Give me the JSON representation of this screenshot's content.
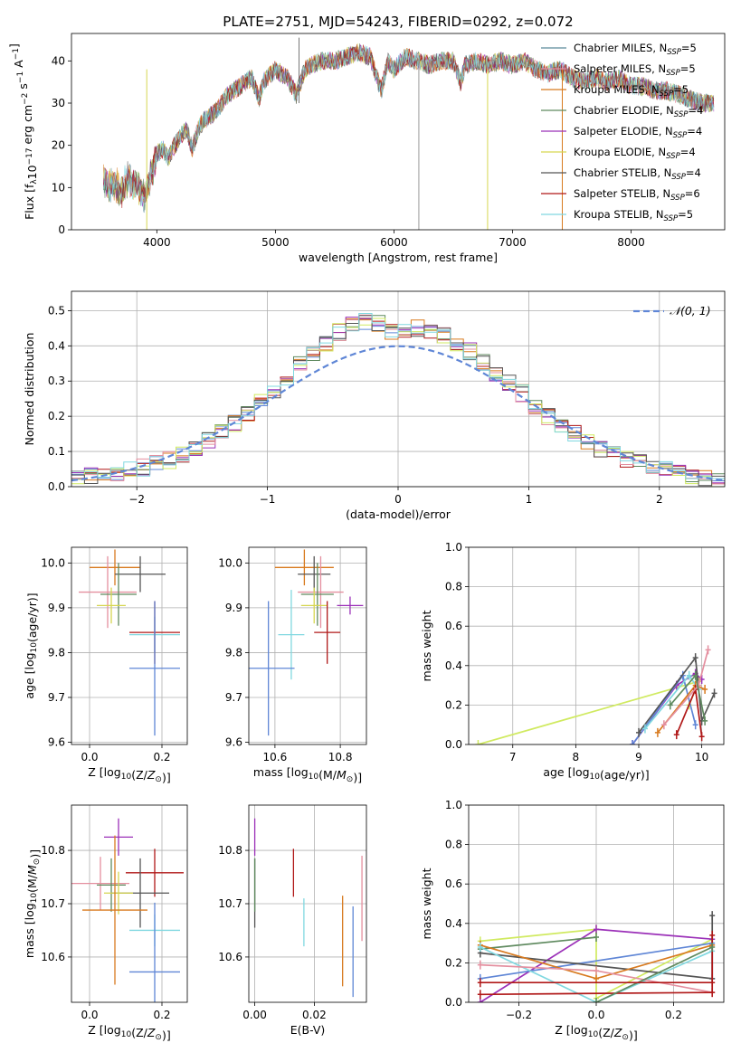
{
  "figure": {
    "title": "PLATE=2751, MJD=54243, FIBERID=0292, z=0.072",
    "colors": {
      "chabrier_miles": "#5a8a9a",
      "salpeter_miles": "#e48f9f",
      "kroupa_miles": "#d87a1f",
      "chabrier_elodie": "#5f8a5f",
      "salpeter_elodie": "#9b30b8",
      "kroupa_elodie": "#d6d650",
      "chabrier_stelib": "#555555",
      "salpeter_stelib": "#b01818",
      "kroupa_stelib": "#80d8e0",
      "blue": "#5f86d6",
      "lime": "#d0ea60"
    }
  },
  "chart_data": [
    {
      "id": "spectrum",
      "type": "line",
      "xlabel": "wavelength [Angstrom, rest frame]",
      "ylabel": "Flux [f_λ10^-17 erg cm^-2 s^-1 A^-1]",
      "xlim": [
        3280,
        8790
      ],
      "ylim": [
        0,
        46.5
      ],
      "xticks": [
        4000,
        5000,
        6000,
        7000,
        8000
      ],
      "yticks": [
        0,
        10,
        20,
        30,
        40
      ],
      "grid": false,
      "legend_position": "top-right",
      "legend": [
        {
          "name": "Chabrier MILES, N",
          "sub": "SSP",
          "suffix": "=5",
          "color": "#5a8a9a"
        },
        {
          "name": "Salpeter MILES, N",
          "sub": "SSP",
          "suffix": "=5",
          "color": "#e48f9f"
        },
        {
          "name": "Kroupa MILES, N",
          "sub": "SSP",
          "suffix": "=5",
          "color": "#d87a1f"
        },
        {
          "name": "Chabrier ELODIE, N",
          "sub": "SSP",
          "suffix": "=4",
          "color": "#5f8a5f"
        },
        {
          "name": "Salpeter ELODIE, N",
          "sub": "SSP",
          "suffix": "=4",
          "color": "#9b30b8"
        },
        {
          "name": "Kroupa ELODIE, N",
          "sub": "SSP",
          "suffix": "=4",
          "color": "#d6d650"
        },
        {
          "name": "Chabrier STELIB, N",
          "sub": "SSP",
          "suffix": "=4",
          "color": "#555555"
        },
        {
          "name": "Salpeter STELIB, N",
          "sub": "SSP",
          "suffix": "=6",
          "color": "#b01818"
        },
        {
          "name": "Kroupa STELIB, N",
          "sub": "SSP",
          "suffix": "=5",
          "color": "#80d8e0"
        }
      ],
      "x": [
        3550,
        3600,
        3650,
        3700,
        3750,
        3800,
        3850,
        3900,
        3950,
        4000,
        4050,
        4100,
        4150,
        4200,
        4250,
        4300,
        4350,
        4400,
        4450,
        4500,
        4600,
        4700,
        4800,
        4862,
        4900,
        5000,
        5100,
        5176,
        5250,
        5300,
        5400,
        5500,
        5600,
        5700,
        5800,
        5893,
        5950,
        6000,
        6100,
        6200,
        6300,
        6400,
        6500,
        6563,
        6600,
        6700,
        6800,
        6900,
        7000,
        7100,
        7200,
        7300,
        7400,
        7500,
        7600,
        7700,
        7800,
        7900,
        8000,
        8100,
        8200,
        8300,
        8400,
        8500,
        8600,
        8700
      ],
      "y": [
        12,
        10,
        11,
        9,
        12,
        11,
        10,
        8,
        13,
        18,
        19,
        17,
        20,
        22,
        24,
        19,
        24,
        26,
        27,
        28,
        32,
        34,
        36,
        31,
        35,
        38,
        36,
        32,
        38,
        39,
        40,
        40,
        41,
        42,
        41,
        33,
        40,
        38,
        41,
        40,
        39,
        40,
        40,
        35,
        39,
        40,
        39,
        40,
        39,
        40,
        38,
        37,
        38,
        36,
        35,
        36,
        35,
        36,
        34,
        34,
        33,
        33,
        32,
        31,
        30,
        30
      ]
    },
    {
      "id": "residuals",
      "type": "line",
      "xlabel": "(data-model)/error",
      "ylabel": "Normed distribution",
      "xlim": [
        -2.5,
        2.5
      ],
      "ylim": [
        0,
        0.555
      ],
      "xticks": [
        -2,
        -1,
        0,
        1,
        2
      ],
      "yticks": [
        0.0,
        0.1,
        0.2,
        0.3,
        0.4,
        0.5
      ],
      "grid": true,
      "legend_position": "top-right",
      "legend": [
        {
          "name": "𝒩(0, 1)",
          "color": "#5f86d6",
          "dashed": true
        }
      ],
      "bin_width": 0.1,
      "x": [
        -2.45,
        -2.35,
        -2.25,
        -2.15,
        -2.05,
        -1.95,
        -1.85,
        -1.75,
        -1.65,
        -1.55,
        -1.45,
        -1.35,
        -1.25,
        -1.15,
        -1.05,
        -0.95,
        -0.85,
        -0.75,
        -0.65,
        -0.55,
        -0.45,
        -0.35,
        -0.25,
        -0.15,
        -0.05,
        0.05,
        0.15,
        0.25,
        0.35,
        0.45,
        0.55,
        0.65,
        0.75,
        0.85,
        0.95,
        1.05,
        1.15,
        1.25,
        1.35,
        1.45,
        1.55,
        1.65,
        1.75,
        1.85,
        1.95,
        2.05,
        2.15,
        2.25,
        2.35,
        2.45
      ],
      "values": [
        0.028,
        0.03,
        0.034,
        0.04,
        0.046,
        0.054,
        0.064,
        0.076,
        0.092,
        0.11,
        0.13,
        0.155,
        0.18,
        0.21,
        0.24,
        0.275,
        0.31,
        0.345,
        0.38,
        0.41,
        0.44,
        0.46,
        0.47,
        0.465,
        0.44,
        0.44,
        0.45,
        0.445,
        0.43,
        0.41,
        0.385,
        0.355,
        0.325,
        0.295,
        0.265,
        0.23,
        0.2,
        0.175,
        0.15,
        0.128,
        0.108,
        0.092,
        0.078,
        0.066,
        0.056,
        0.047,
        0.038,
        0.03,
        0.024,
        0.018
      ],
      "normal_curve": true
    },
    {
      "id": "age_vs_z",
      "type": "scatter",
      "xlabel": "Z [log10(Z/Z⊙)]",
      "ylabel": "age  [log10(age/yr)]",
      "xlim": [
        -0.05,
        0.27
      ],
      "ylim": [
        9.595,
        10.035
      ],
      "xticks": [
        0.0,
        0.2
      ],
      "yticks": [
        9.6,
        9.7,
        9.8,
        9.9,
        10.0
      ],
      "grid": true,
      "points": [
        {
          "x": 0.07,
          "y": 9.99,
          "xerr": 0.07,
          "yerr": 0.04,
          "color": "#d87a1f"
        },
        {
          "x": 0.14,
          "y": 9.975,
          "xerr": 0.07,
          "yerr": 0.04,
          "color": "#555555"
        },
        {
          "x": 0.05,
          "y": 9.935,
          "xerr": 0.08,
          "yerr": 0.08,
          "color": "#e48f9f"
        },
        {
          "x": 0.08,
          "y": 9.93,
          "xerr": 0.05,
          "yerr": 0.07,
          "color": "#5f8a5f"
        },
        {
          "x": 0.06,
          "y": 9.905,
          "xerr": 0.04,
          "yerr": 0.04,
          "color": "#d6d650"
        },
        {
          "x": 0.18,
          "y": 9.84,
          "xerr": 0.07,
          "yerr": 0.04,
          "color": "#80d8e0"
        },
        {
          "x": 0.18,
          "y": 9.845,
          "xerr": 0.07,
          "yerr": 0.07,
          "color": "#b01818"
        },
        {
          "x": 0.18,
          "y": 9.765,
          "xerr": 0.07,
          "yerr": 0.15,
          "color": "#5f86d6"
        }
      ]
    },
    {
      "id": "age_vs_mass",
      "type": "scatter",
      "xlabel": "mass [log10(M/M⊙)]",
      "ylabel": "",
      "xlim": [
        10.52,
        10.88
      ],
      "ylim": [
        9.595,
        10.035
      ],
      "xticks": [
        10.6,
        10.8
      ],
      "yticks": [
        9.6,
        9.7,
        9.8,
        9.9,
        10.0
      ],
      "grid": true,
      "points": [
        {
          "x": 10.69,
          "y": 9.99,
          "xerr": 0.09,
          "yerr": 0.04,
          "color": "#d87a1f"
        },
        {
          "x": 10.72,
          "y": 9.975,
          "xerr": 0.05,
          "yerr": 0.04,
          "color": "#555555"
        },
        {
          "x": 10.74,
          "y": 9.935,
          "xerr": 0.07,
          "yerr": 0.08,
          "color": "#e48f9f"
        },
        {
          "x": 10.73,
          "y": 9.93,
          "xerr": 0.05,
          "yerr": 0.07,
          "color": "#5f8a5f"
        },
        {
          "x": 10.72,
          "y": 9.905,
          "xerr": 0.04,
          "yerr": 0.04,
          "color": "#d6d650"
        },
        {
          "x": 10.83,
          "y": 9.905,
          "xerr": 0.04,
          "yerr": 0.02,
          "color": "#9b30b8"
        },
        {
          "x": 10.65,
          "y": 9.84,
          "xerr": 0.04,
          "yerr": 0.1,
          "color": "#80d8e0"
        },
        {
          "x": 10.76,
          "y": 9.845,
          "xerr": 0.04,
          "yerr": 0.07,
          "color": "#b01818"
        },
        {
          "x": 10.58,
          "y": 9.765,
          "xerr": 0.08,
          "yerr": 0.15,
          "color": "#5f86d6"
        }
      ]
    },
    {
      "id": "weight_vs_age",
      "type": "line",
      "xlabel": "age  [log10(age/yr)]",
      "ylabel": "mass weight",
      "xlim": [
        6.3,
        10.35
      ],
      "ylim": [
        0,
        1.0
      ],
      "xticks": [
        7,
        8,
        9,
        10
      ],
      "yticks": [
        0.0,
        0.2,
        0.4,
        0.6,
        0.8,
        1.0
      ],
      "grid": true,
      "series": [
        {
          "color": "#d0ea60",
          "x": [
            6.45,
            9.95,
            9.8
          ],
          "y": [
            0.0,
            0.32,
            0.2
          ]
        },
        {
          "color": "#9b30b8",
          "x": [
            8.9,
            9.6,
            9.9,
            10.0
          ],
          "y": [
            0.0,
            0.3,
            0.36,
            0.33
          ]
        },
        {
          "color": "#5f86d6",
          "x": [
            8.9,
            9.7,
            9.9
          ],
          "y": [
            0.0,
            0.35,
            0.1
          ]
        },
        {
          "color": "#555555",
          "x": [
            9.0,
            9.9,
            10.0,
            10.2
          ],
          "y": [
            0.06,
            0.44,
            0.12,
            0.26
          ]
        },
        {
          "color": "#80d8e0",
          "x": [
            9.1,
            9.8,
            9.95
          ],
          "y": [
            0.08,
            0.35,
            0.28
          ]
        },
        {
          "color": "#d87a1f",
          "x": [
            9.3,
            9.9,
            10.05
          ],
          "y": [
            0.06,
            0.3,
            0.28
          ]
        },
        {
          "color": "#b01818",
          "x": [
            9.6,
            9.9,
            10.0
          ],
          "y": [
            0.05,
            0.28,
            0.04
          ]
        },
        {
          "color": "#e48f9f",
          "x": [
            9.4,
            9.95,
            10.1
          ],
          "y": [
            0.1,
            0.3,
            0.48
          ]
        },
        {
          "color": "#5f8a5f",
          "x": [
            9.5,
            9.9,
            10.05
          ],
          "y": [
            0.2,
            0.35,
            0.12
          ]
        }
      ]
    },
    {
      "id": "mass_vs_z",
      "type": "scatter",
      "xlabel": "Z [log10(Z/Z⊙)]",
      "ylabel": "mass [log10(M/M⊙)]",
      "xlim": [
        -0.05,
        0.27
      ],
      "ylim": [
        10.515,
        10.885
      ],
      "xticks": [
        0.0,
        0.2
      ],
      "yticks": [
        10.6,
        10.7,
        10.8
      ],
      "grid": true,
      "points": [
        {
          "x": 0.08,
          "y": 10.825,
          "xerr": 0.04,
          "yerr": 0.035,
          "color": "#9b30b8"
        },
        {
          "x": 0.03,
          "y": 10.738,
          "xerr": 0.08,
          "yerr": 0.05,
          "color": "#e48f9f"
        },
        {
          "x": 0.06,
          "y": 10.735,
          "xerr": 0.04,
          "yerr": 0.05,
          "color": "#5f8a5f"
        },
        {
          "x": 0.18,
          "y": 10.758,
          "xerr": 0.08,
          "yerr": 0.045,
          "color": "#b01818"
        },
        {
          "x": 0.14,
          "y": 10.72,
          "xerr": 0.08,
          "yerr": 0.065,
          "color": "#555555"
        },
        {
          "x": 0.08,
          "y": 10.72,
          "xerr": 0.04,
          "yerr": 0.04,
          "color": "#d6d650"
        },
        {
          "x": 0.07,
          "y": 10.688,
          "xerr": 0.09,
          "yerr": 0.14,
          "color": "#d87a1f"
        },
        {
          "x": 0.18,
          "y": 10.65,
          "xerr": 0.07,
          "yerr": 0.03,
          "color": "#80d8e0"
        },
        {
          "x": 0.18,
          "y": 10.572,
          "xerr": 0.07,
          "yerr": 0.13,
          "color": "#5f86d6"
        }
      ]
    },
    {
      "id": "mass_vs_ebv",
      "type": "scatter",
      "xlabel": "E(B-V)",
      "ylabel": "",
      "xlim": [
        -0.002,
        0.0375
      ],
      "ylim": [
        10.515,
        10.885
      ],
      "xticks": [
        0.0,
        0.02
      ],
      "yticks": [
        10.6,
        10.7,
        10.8
      ],
      "grid": true,
      "points": [
        {
          "x": 0.0,
          "y": 10.825,
          "xerr": 0,
          "yerr": 0.035,
          "color": "#9b30b8"
        },
        {
          "x": 0.0,
          "y": 10.72,
          "xerr": 0,
          "yerr": 0.065,
          "color": "#555555"
        },
        {
          "x": 0.0,
          "y": 10.735,
          "xerr": 0,
          "yerr": 0.05,
          "color": "#5f8a5f"
        },
        {
          "x": 0.013,
          "y": 10.758,
          "xerr": 0,
          "yerr": 0.045,
          "color": "#b01818"
        },
        {
          "x": 0.0165,
          "y": 10.665,
          "xerr": 0,
          "yerr": 0.045,
          "color": "#80d8e0"
        },
        {
          "x": 0.0295,
          "y": 10.63,
          "xerr": 0,
          "yerr": 0.085,
          "color": "#d87a1f"
        },
        {
          "x": 0.033,
          "y": 10.61,
          "xerr": 0,
          "yerr": 0.085,
          "color": "#5f86d6"
        },
        {
          "x": 0.036,
          "y": 10.71,
          "xerr": 0,
          "yerr": 0.08,
          "color": "#e48f9f"
        }
      ]
    },
    {
      "id": "weight_vs_z",
      "type": "line",
      "xlabel": "Z [log10(Z/Z⊙)]",
      "ylabel": "mass weight",
      "xlim": [
        -0.33,
        0.33
      ],
      "ylim": [
        0,
        1.0
      ],
      "xticks": [
        -0.2,
        0.0,
        0.2
      ],
      "yticks": [
        0.0,
        0.2,
        0.4,
        0.6,
        0.8,
        1.0
      ],
      "grid": true,
      "series": [
        {
          "color": "#d0ea60",
          "x": [
            -0.3,
            0.0,
            0.0,
            0.3
          ],
          "y": [
            0.31,
            0.37,
            0.02,
            0.32
          ]
        },
        {
          "color": "#9b30b8",
          "x": [
            -0.3,
            0.0,
            0.3
          ],
          "y": [
            0.0,
            0.37,
            0.32
          ]
        },
        {
          "color": "#5f86d6",
          "x": [
            -0.3,
            0.3,
            0.3
          ],
          "y": [
            0.12,
            0.3,
            0.12
          ]
        },
        {
          "color": "#5f8a5f",
          "x": [
            -0.3,
            0.0
          ],
          "y": [
            0.27,
            0.33
          ]
        },
        {
          "color": "#555555",
          "x": [
            -0.3,
            0.3,
            0.3
          ],
          "y": [
            0.25,
            0.12,
            0.44
          ]
        },
        {
          "color": "#d87a1f",
          "x": [
            -0.3,
            0.0,
            0.3
          ],
          "y": [
            0.29,
            0.12,
            0.29
          ]
        },
        {
          "color": "#80d8e0",
          "x": [
            -0.3,
            0.0,
            0.3
          ],
          "y": [
            0.28,
            0.0,
            0.26
          ]
        },
        {
          "color": "#e48f9f",
          "x": [
            -0.3,
            0.0,
            0.3
          ],
          "y": [
            0.19,
            0.16,
            0.05
          ]
        },
        {
          "color": "#b01818",
          "x": [
            -0.3,
            0.3,
            0.3
          ],
          "y": [
            0.04,
            0.05,
            0.34
          ]
        },
        {
          "color": "#5f8a5f",
          "x": [
            0.0,
            0.3
          ],
          "y": [
            0.0,
            0.28
          ]
        },
        {
          "color": "#b01818",
          "x": [
            -0.3,
            0.3
          ],
          "y": [
            0.1,
            0.1
          ]
        }
      ]
    }
  ]
}
